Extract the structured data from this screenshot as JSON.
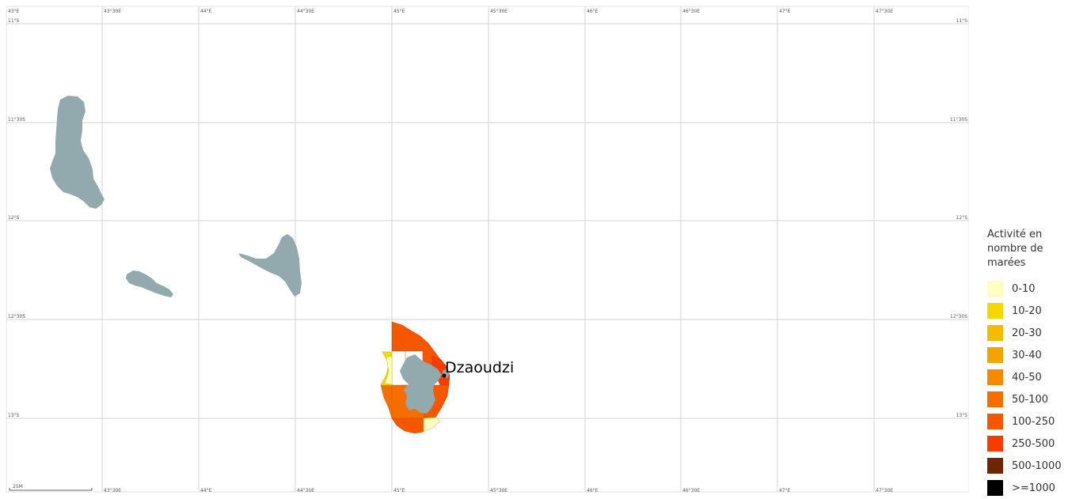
{
  "map": {
    "grid_labels_top": [
      "43°E",
      "43°30E",
      "44°E",
      "44°30E",
      "45°E",
      "45°30E",
      "46°E",
      "46°30E",
      "47°E",
      "47°30E"
    ],
    "grid_labels_bottom": [
      "43°30E",
      "44°E",
      "44°30E",
      "45°E",
      "45°30E",
      "46°E",
      "46°30E",
      "47°E",
      "47°30E"
    ],
    "grid_labels_lat": [
      "11°S",
      "11°30S",
      "12°S",
      "12°30S",
      "13°S"
    ],
    "place_label": "Dzaoudzi",
    "scale_label": "25M",
    "colors": {
      "land": "#92a9ad",
      "grid": "#d3d3d3",
      "background": "#ffffff"
    }
  },
  "legend": {
    "title": "Activité en nombre de marées",
    "classes": [
      {
        "label": "0-10",
        "color": "#ffffc0"
      },
      {
        "label": "10-20",
        "color": "#f5d800"
      },
      {
        "label": "20-30",
        "color": "#f5bb00"
      },
      {
        "label": "30-40",
        "color": "#f5a300"
      },
      {
        "label": "40-50",
        "color": "#f58a00"
      },
      {
        "label": "50-100",
        "color": "#f56e00"
      },
      {
        "label": "100-250",
        "color": "#f55600"
      },
      {
        "label": "250-500",
        "color": "#f53d00"
      },
      {
        "label": "500-1000",
        "color": "#6e2500"
      },
      {
        "label": ">=1000",
        "color": "#000000"
      }
    ]
  }
}
